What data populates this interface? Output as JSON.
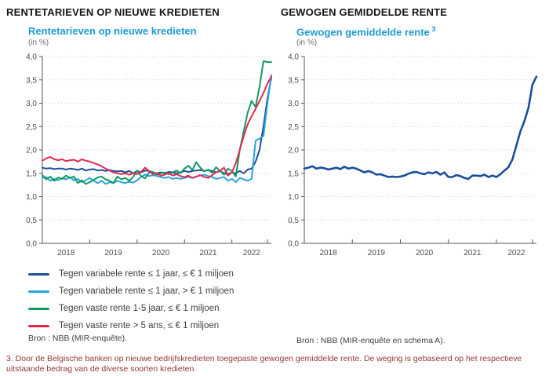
{
  "left_panel": {
    "title": "RENTETARIEVEN OP NIEUWE KREDIETEN",
    "subtitle": "Rentetarieven op nieuwe kredieten",
    "unit": "(in %)",
    "source": "Bron : NBB (MIR-enquête)."
  },
  "right_panel": {
    "title": "GEWOGEN GEMIDDELDE RENTE",
    "subtitle": "Gewogen gemiddelde rente",
    "subtitle_sup": "3",
    "unit": "(in %)",
    "source": "Bron : NBB (MIR-enquête en schema A)."
  },
  "footnote": "3. Door de Belgische banken op nieuwe bedrijfskredieten toegepaste gewogen gemiddelde rente. De weging is gebaseerd op het respectieve uitstaande bedrag van de diverse soorten kredieten.",
  "palette": {
    "subtitle_blue": "#1d9bd1",
    "footnote_red": "#953735",
    "grid": "#c9c9c9",
    "axis": "#555555",
    "dark_blue": "#1b4e9b",
    "light_blue": "#2aa3dd",
    "green": "#0f9a64",
    "red": "#e32a4f"
  },
  "chart_data": [
    {
      "type": "line",
      "title": "Rentetarieven op nieuwe kredieten",
      "xlabel": "",
      "ylabel": "in %",
      "ylim": [
        0,
        4
      ],
      "grid": "dotted horizontal",
      "legend_position": "below",
      "x_unit": "month",
      "x_start": "2018-01",
      "x_end": "2022-11",
      "y_tick_values": [
        0,
        0.5,
        1,
        1.5,
        2,
        2.5,
        3,
        3.5,
        4
      ],
      "y_tick_labels": [
        "0,0",
        "0,5",
        "1,0",
        "1,5",
        "2,0",
        "2,5",
        "3,0",
        "3,5",
        "4,0"
      ],
      "x_labels": [
        "2018",
        "2019",
        "2020",
        "2021",
        "2022"
      ],
      "x_tick_indices": [
        12,
        24,
        36,
        48,
        57
      ],
      "x_label_indices": [
        6,
        18,
        30,
        42,
        53
      ],
      "series": [
        {
          "name": "Tegen variabele rente ≤ 1 jaar, ≤ € 1 miljoen",
          "color": "#1b4e9b",
          "values": [
            1.62,
            1.6,
            1.61,
            1.59,
            1.6,
            1.6,
            1.58,
            1.6,
            1.59,
            1.57,
            1.6,
            1.56,
            1.58,
            1.59,
            1.56,
            1.57,
            1.55,
            1.57,
            1.55,
            1.54,
            1.55,
            1.52,
            1.55,
            1.5,
            1.55,
            1.52,
            1.56,
            1.55,
            1.52,
            1.5,
            1.52,
            1.5,
            1.53,
            1.52,
            1.5,
            1.52,
            1.55,
            1.53,
            1.55,
            1.56,
            1.57,
            1.55,
            1.57,
            1.55,
            1.52,
            1.55,
            1.5,
            1.48,
            1.52,
            1.5,
            1.55,
            1.5,
            1.58,
            1.6,
            1.75,
            2.0,
            2.5,
            3.1,
            3.55
          ]
        },
        {
          "name": "Tegen variabele rente ≤ 1 jaar, > € 1 miljoen",
          "color": "#2aa3dd",
          "values": [
            1.4,
            1.42,
            1.34,
            1.38,
            1.35,
            1.4,
            1.37,
            1.42,
            1.35,
            1.38,
            1.31,
            1.35,
            1.4,
            1.34,
            1.29,
            1.34,
            1.27,
            1.31,
            1.29,
            1.34,
            1.31,
            1.29,
            1.32,
            1.3,
            1.35,
            1.42,
            1.47,
            1.44,
            1.46,
            1.44,
            1.42,
            1.4,
            1.42,
            1.38,
            1.4,
            1.38,
            1.4,
            1.42,
            1.4,
            1.43,
            1.45,
            1.47,
            1.44,
            1.42,
            1.38,
            1.4,
            1.42,
            1.34,
            1.38,
            1.31,
            1.4,
            1.37,
            1.34,
            1.38,
            2.2,
            2.24,
            2.3,
            3.0,
            3.6
          ]
        },
        {
          "name": "Tegen vaste rente 1-5 jaar, ≤ € 1 miljoen",
          "color": "#0f9a64",
          "values": [
            1.46,
            1.37,
            1.43,
            1.34,
            1.41,
            1.38,
            1.45,
            1.4,
            1.43,
            1.29,
            1.35,
            1.27,
            1.31,
            1.36,
            1.41,
            1.43,
            1.37,
            1.34,
            1.29,
            1.43,
            1.37,
            1.4,
            1.34,
            1.42,
            1.56,
            1.44,
            1.39,
            1.51,
            1.53,
            1.47,
            1.5,
            1.52,
            1.48,
            1.52,
            1.56,
            1.5,
            1.6,
            1.66,
            1.57,
            1.74,
            1.62,
            1.54,
            1.58,
            1.51,
            1.63,
            1.55,
            1.47,
            1.6,
            1.55,
            1.43,
            2.0,
            2.4,
            2.8,
            3.05,
            2.92,
            3.35,
            3.9,
            3.88,
            3.88
          ]
        },
        {
          "name": "Tegen vaste rente > 5 ans, ≤ € 1 miljoen",
          "color": "#e32a4f",
          "values": [
            1.77,
            1.82,
            1.85,
            1.8,
            1.78,
            1.8,
            1.76,
            1.78,
            1.79,
            1.75,
            1.8,
            1.77,
            1.75,
            1.72,
            1.69,
            1.65,
            1.6,
            1.56,
            1.52,
            1.5,
            1.48,
            1.5,
            1.47,
            1.5,
            1.48,
            1.53,
            1.62,
            1.55,
            1.48,
            1.5,
            1.45,
            1.47,
            1.51,
            1.45,
            1.48,
            1.44,
            1.42,
            1.45,
            1.4,
            1.43,
            1.46,
            1.42,
            1.4,
            1.46,
            1.52,
            1.56,
            1.62,
            1.45,
            1.52,
            1.72,
            2.0,
            2.3,
            2.55,
            2.72,
            2.88,
            3.05,
            3.22,
            3.42,
            3.57
          ]
        }
      ]
    },
    {
      "type": "line",
      "title": "Gewogen gemiddelde rente",
      "xlabel": "",
      "ylabel": "in %",
      "ylim": [
        0,
        4
      ],
      "grid": "dotted horizontal",
      "x_unit": "month",
      "x_start": "2018-01",
      "x_end": "2022-11",
      "y_tick_values": [
        0,
        0.5,
        1,
        1.5,
        2,
        2.5,
        3,
        3.5,
        4
      ],
      "y_tick_labels": [
        "0,0",
        "0,5",
        "1,0",
        "1,5",
        "2,0",
        "2,5",
        "3,0",
        "3,5",
        "4,0"
      ],
      "x_labels": [
        "2018",
        "2019",
        "2020",
        "2021",
        "2022"
      ],
      "x_tick_indices": [
        12,
        24,
        36,
        48,
        57
      ],
      "x_label_indices": [
        6,
        18,
        30,
        42,
        53
      ],
      "series": [
        {
          "name": "Gewogen gemiddelde rente",
          "color": "#1b4e9b",
          "values": [
            1.6,
            1.62,
            1.65,
            1.6,
            1.62,
            1.61,
            1.58,
            1.6,
            1.62,
            1.59,
            1.64,
            1.6,
            1.62,
            1.6,
            1.56,
            1.52,
            1.55,
            1.52,
            1.47,
            1.48,
            1.45,
            1.42,
            1.43,
            1.42,
            1.43,
            1.45,
            1.49,
            1.52,
            1.53,
            1.5,
            1.48,
            1.52,
            1.5,
            1.53,
            1.47,
            1.52,
            1.42,
            1.42,
            1.46,
            1.44,
            1.4,
            1.38,
            1.45,
            1.45,
            1.44,
            1.47,
            1.42,
            1.45,
            1.42,
            1.48,
            1.56,
            1.63,
            1.8,
            2.1,
            2.4,
            2.62,
            2.9,
            3.4,
            3.57
          ]
        }
      ]
    }
  ]
}
